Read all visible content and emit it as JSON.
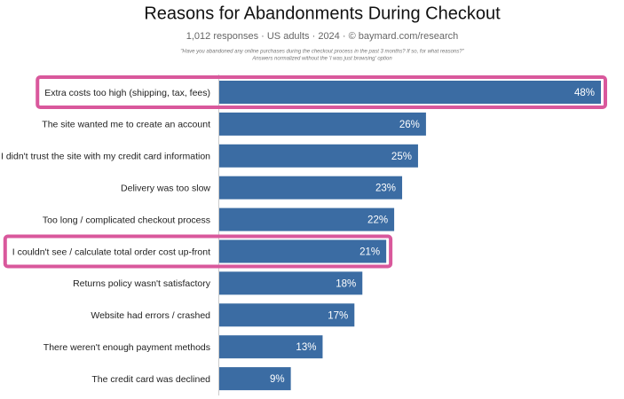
{
  "chart_data": {
    "type": "hbar",
    "title": "Reasons for Abandonments During Checkout",
    "subtitle": "1,012 responses · US adults · 2024 · © baymard.com/research",
    "notes": [
      "\"Have you abandoned any online purchases during the checkout process in the past 3 months? If so, for what reasons?\"",
      "Answers normalized without the 'I was just browsing' option"
    ],
    "categories": [
      "Extra costs too high (shipping, tax, fees)",
      "The site wanted me to create an account",
      "I didn't trust the site with my credit card information",
      "Delivery was too slow",
      "Too long / complicated checkout process",
      "I couldn't see / calculate total order cost up-front",
      "Returns policy wasn't satisfactory",
      "Website had errors / crashed",
      "There weren't enough payment methods",
      "The credit card was declined"
    ],
    "values": [
      48,
      26,
      25,
      23,
      22,
      21,
      18,
      17,
      13,
      9
    ],
    "value_labels": [
      "48%",
      "26%",
      "25%",
      "23%",
      "22%",
      "21%",
      "18%",
      "17%",
      "13%",
      "9%"
    ],
    "color": "#3b6ca3",
    "highlight": [
      0,
      5
    ],
    "highlight_color": "#d9589c"
  }
}
